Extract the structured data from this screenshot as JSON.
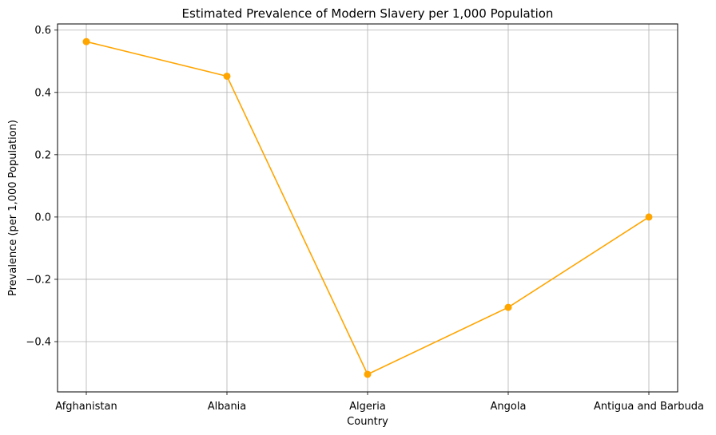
{
  "chart_data": {
    "type": "line",
    "title": "Estimated Prevalence of Modern Slavery per 1,000 Population",
    "xlabel": "Country",
    "ylabel": "Prevalence (per 1,000 Population)",
    "categories": [
      "Afghanistan",
      "Albania",
      "Algeria",
      "Angola",
      "Antigua and Barbuda"
    ],
    "series": [
      {
        "values": [
          0.563,
          0.452,
          -0.505,
          -0.29,
          0.0
        ],
        "color": "#ffa500",
        "marker": "circle"
      }
    ],
    "ylim": [
      -0.5614,
      0.6198
    ],
    "yticks": [
      -0.4,
      -0.2,
      0.0,
      0.2,
      0.4,
      0.6
    ],
    "ytick_labels": [
      "−0.4",
      "−0.2",
      "0.0",
      "0.2",
      "0.4",
      "0.6"
    ],
    "grid": true,
    "legend": false
  }
}
